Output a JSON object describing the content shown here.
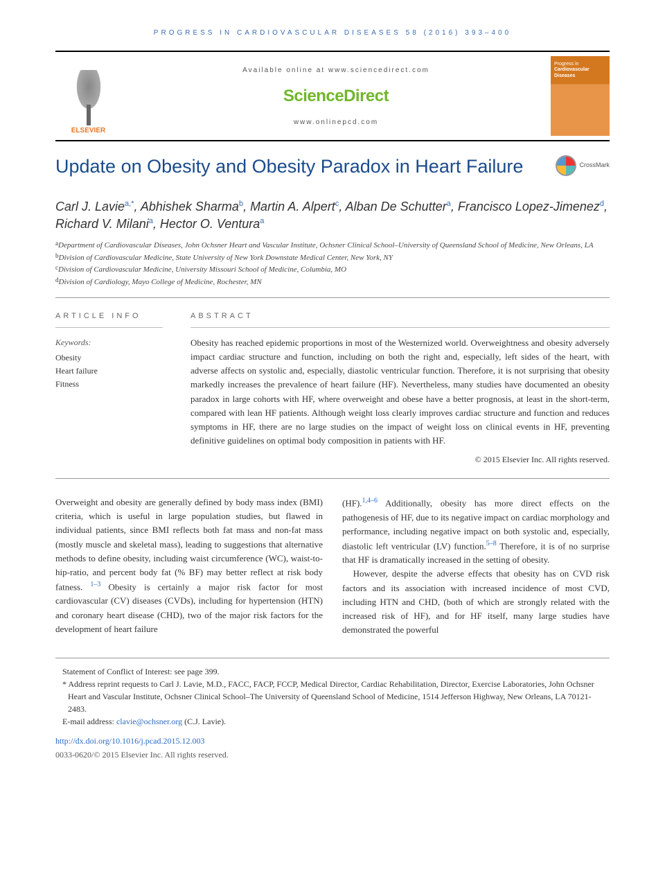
{
  "journal_header": "PROGRESS IN CARDIOVASCULAR DISEASES 58 (2016) 393–400",
  "banner": {
    "publisher_logo_text": "ELSEVIER",
    "available_text": "Available online at www.sciencedirect.com",
    "sd_text": "ScienceDirect",
    "site_text": "www.onlinepcd.com",
    "cover_line1": "Progress in",
    "cover_line2": "Cardiovascular",
    "cover_line3": "Diseases"
  },
  "title": "Update on Obesity and Obesity Paradox in Heart Failure",
  "crossmark_label": "CrossMark",
  "authors_html": "Carl J. Lavie<sup>a,*</sup>, Abhishek Sharma<sup>b</sup>, Martin A. Alpert<sup>c</sup>, Alban De Schutter<sup>a</sup>, Francisco Lopez-Jimenez<sup>d</sup>, Richard V. Milani<sup>a</sup>, Hector O. Ventura<sup>a</sup>",
  "affiliations": [
    {
      "sup": "a",
      "text": "Department of Cardiovascular Diseases, John Ochsner Heart and Vascular Institute, Ochsner Clinical School–University of Queensland School of Medicine, New Orleans, LA"
    },
    {
      "sup": "b",
      "text": "Division of Cardiovascular Medicine, State University of New York Downstate Medical Center, New York, NY"
    },
    {
      "sup": "c",
      "text": "Division of Cardiovascular Medicine, University Missouri School of Medicine, Columbia, MO"
    },
    {
      "sup": "d",
      "text": "Division of Cardiology, Mayo College of Medicine, Rochester, MN"
    }
  ],
  "article_info_head": "ARTICLE INFO",
  "abstract_head": "ABSTRACT",
  "keywords_label": "Keywords:",
  "keywords": [
    "Obesity",
    "Heart failure",
    "Fitness"
  ],
  "abstract": "Obesity has reached epidemic proportions in most of the Westernized world. Overweightness and obesity adversely impact cardiac structure and function, including on both the right and, especially, left sides of the heart, with adverse affects on systolic and, especially, diastolic ventricular function. Therefore, it is not surprising that obesity markedly increases the prevalence of heart failure (HF). Nevertheless, many studies have documented an obesity paradox in large cohorts with HF, where overweight and obese have a better prognosis, at least in the short-term, compared with lean HF patients. Although weight loss clearly improves cardiac structure and function and reduces symptoms in HF, there are no large studies on the impact of weight loss on clinical events in HF, preventing definitive guidelines on optimal body composition in patients with HF.",
  "abstract_copyright": "© 2015 Elsevier Inc. All rights reserved.",
  "body_left": "Overweight and obesity are generally defined by body mass index (BMI) criteria, which is useful in large population studies, but flawed in individual patients, since BMI reflects both fat mass and non-fat mass (mostly muscle and skeletal mass), leading to suggestions that alternative methods to define obesity, including waist circumference (WC), waist-to-hip-ratio, and percent body fat (% BF) may better reflect at risk body fatness. ",
  "body_left_ref1": "1–3",
  "body_left_cont": " Obesity is certainly a major risk factor for most cardiovascular (CV) diseases (CVDs), including for hypertension (HTN) and coronary heart disease (CHD), two of the major risk factors for the development of heart failure",
  "body_right_1a": "(HF).",
  "body_right_ref1": "1,4–6",
  "body_right_1b": " Additionally, obesity has more direct effects on the pathogenesis of HF, due to its negative impact on cardiac morphology and performance, including negative impact on both systolic and, especially, diastolic left ventricular (LV) function.",
  "body_right_ref2": "5–8",
  "body_right_1c": " Therefore, it is of no surprise that HF is dramatically increased in the setting of obesity.",
  "body_right_2": "However, despite the adverse effects that obesity has on CVD risk factors and its association with increased incidence of most CVD, including HTN and CHD, (both of which are strongly related with the increased risk of HF), and for HF itself, many large studies have demonstrated the powerful",
  "footnotes": {
    "conflict": "Statement of Conflict of Interest: see page 399.",
    "corr_marker": "*",
    "corr_text": "Address reprint requests to Carl J. Lavie, M.D., FACC, FACP, FCCP, Medical Director, Cardiac Rehabilitation, Director, Exercise Laboratories, John Ochsner Heart and Vascular Institute, Ochsner Clinical School–The University of Queensland School of Medicine, 1514 Jefferson Highway, New Orleans, LA 70121-2483.",
    "email_label": "E-mail address: ",
    "email": "clavie@ochsner.org",
    "email_suffix": " (C.J. Lavie)."
  },
  "doi": "http://dx.doi.org/10.1016/j.pcad.2015.12.003",
  "issn_line": "0033-0620/© 2015 Elsevier Inc. All rights reserved.",
  "colors": {
    "link": "#2a6bc5",
    "title": "#1a4b8c",
    "sd_green": "#71b62c",
    "elsevier_orange": "#e87722"
  }
}
